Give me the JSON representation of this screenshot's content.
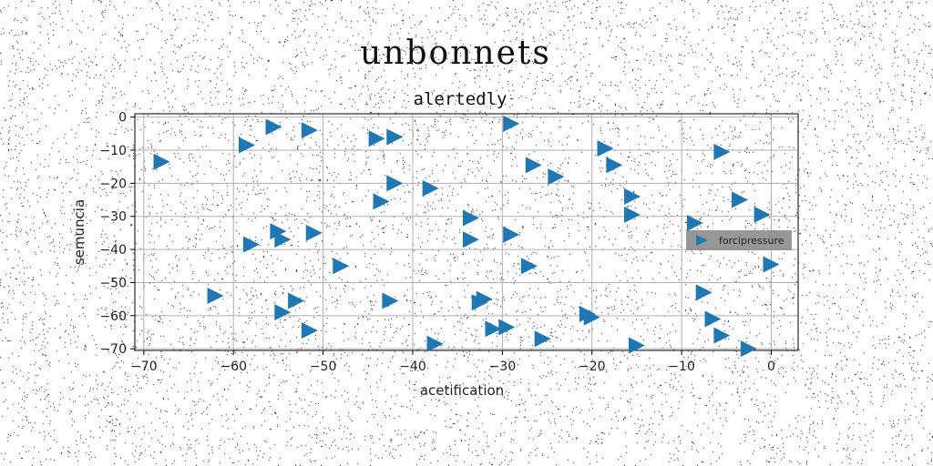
{
  "chart_data": {
    "type": "scatter",
    "title": "unbonnets",
    "subtitle": "alertedly",
    "xlabel": "acetification",
    "ylabel": "semuncia",
    "xlim": [
      -71,
      3
    ],
    "ylim": [
      -70.5,
      1
    ],
    "xticks": [
      -70,
      -60,
      -50,
      -40,
      -30,
      -20,
      -10,
      0
    ],
    "yticks": [
      0,
      -10,
      -20,
      -30,
      -40,
      -50,
      -60,
      -70
    ],
    "grid": true,
    "legend_position": "center-right",
    "colors": {
      "series": "#1f77b4",
      "grid": "#b0b0b0",
      "legend_bg": "#8c8c8c"
    },
    "series": [
      {
        "name": "forcipressure",
        "marker": "triangle-right",
        "points": [
          [
            -68,
            -13.5
          ],
          [
            -58.5,
            -8.5
          ],
          [
            -55.5,
            -3
          ],
          [
            -51.5,
            -4
          ],
          [
            -58,
            -38.5
          ],
          [
            -55,
            -34.5
          ],
          [
            -54.5,
            -37
          ],
          [
            -51,
            -35
          ],
          [
            -48,
            -45
          ],
          [
            -62,
            -54
          ],
          [
            -53,
            -55.5
          ],
          [
            -54.5,
            -59
          ],
          [
            -51.5,
            -64.5
          ],
          [
            -44,
            -6.5
          ],
          [
            -42,
            -6
          ],
          [
            -42,
            -20
          ],
          [
            -38,
            -21.5
          ],
          [
            -43.5,
            -25.5
          ],
          [
            -42.5,
            -55.5
          ],
          [
            -37.5,
            -68.5
          ],
          [
            -33.5,
            -30.5
          ],
          [
            -33.5,
            -37
          ],
          [
            -29,
            -2
          ],
          [
            -29,
            -35.5
          ],
          [
            -26.5,
            -14.5
          ],
          [
            -24,
            -18
          ],
          [
            -27,
            -45
          ],
          [
            -32,
            -55
          ],
          [
            -32.5,
            -56
          ],
          [
            -31,
            -64
          ],
          [
            -29.5,
            -63.5
          ],
          [
            -25.5,
            -67
          ],
          [
            -18.5,
            -9.5
          ],
          [
            -17.5,
            -14.5
          ],
          [
            -15.5,
            -24
          ],
          [
            -15.5,
            -29.5
          ],
          [
            -20.5,
            -59.5
          ],
          [
            -20,
            -60.5
          ],
          [
            -15,
            -69
          ],
          [
            -5.5,
            -10.5
          ],
          [
            -8.5,
            -32
          ],
          [
            -3.5,
            -25
          ],
          [
            -1,
            -29.5
          ],
          [
            0,
            -44.5
          ],
          [
            -7.5,
            -53
          ],
          [
            -6.5,
            -61
          ],
          [
            -5.5,
            -66
          ],
          [
            -2.5,
            -70
          ]
        ]
      }
    ]
  }
}
